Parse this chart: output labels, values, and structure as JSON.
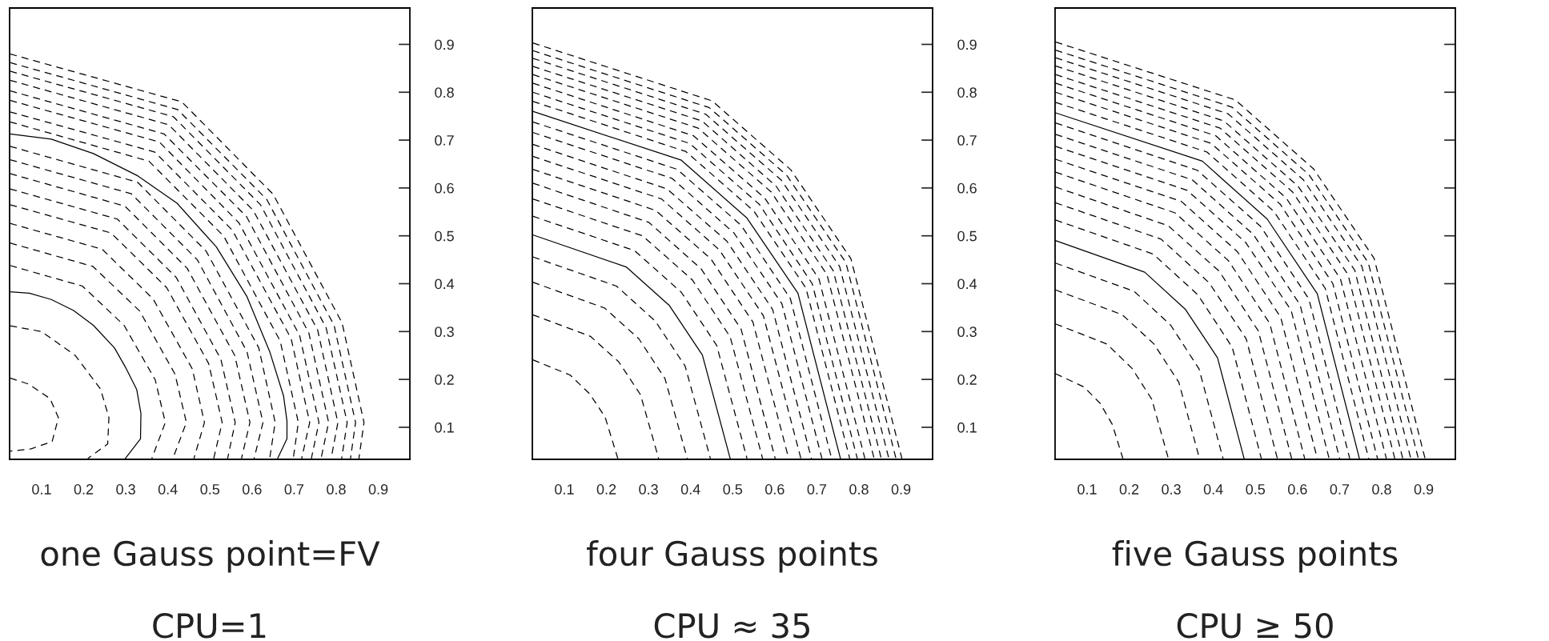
{
  "chart_data": [
    {
      "type": "line",
      "xlabel": "one Gauss point=FV",
      "annotations": [
        "CPU=1"
      ],
      "xlim": [
        0.024,
        0.975
      ],
      "ylim": [
        0.033,
        0.976
      ],
      "xticks": [
        0.1,
        0.2,
        0.3,
        0.4,
        0.5,
        0.6,
        0.7,
        0.8,
        0.9
      ],
      "yticks": [
        0.1,
        0.2,
        0.3,
        0.4,
        0.5,
        0.6,
        0.7,
        0.8,
        0.9
      ],
      "series": [
        {
          "x": [
            0.025,
            0.07,
            0.12,
            0.14,
            0.125,
            0.075,
            0.025
          ],
          "values": [
            0.203,
            0.19,
            0.16,
            0.12,
            0.07,
            0.055,
            0.05
          ],
          "color": "#000000",
          "line_style": "dashed"
        },
        {
          "x": [
            0.025,
            0.1,
            0.18,
            0.24,
            0.26,
            0.257,
            0.21
          ],
          "values": [
            0.312,
            0.3,
            0.25,
            0.18,
            0.12,
            0.065,
            0.035
          ],
          "color": "#000000",
          "line_style": "dashed"
        },
        {
          "x": [
            0.025,
            0.071,
            0.123,
            0.176,
            0.223,
            0.273,
            0.299,
            0.326,
            0.336,
            0.335,
            0.299
          ],
          "values": [
            0.383,
            0.38,
            0.367,
            0.344,
            0.313,
            0.266,
            0.226,
            0.179,
            0.129,
            0.076,
            0.035
          ],
          "color": "#000000",
          "line_style": "solid"
        },
        {
          "x": [
            0.025,
            0.197,
            0.296,
            0.37,
            0.394,
            0.362
          ],
          "values": [
            0.438,
            0.395,
            0.313,
            0.199,
            0.11,
            0.035
          ],
          "color": "#000000",
          "line_style": "dashed"
        },
        {
          "x": [
            0.025,
            0.222,
            0.333,
            0.417,
            0.444,
            0.412
          ],
          "values": [
            0.485,
            0.436,
            0.343,
            0.211,
            0.11,
            0.035
          ],
          "color": "#000000",
          "line_style": "dashed"
        },
        {
          "x": [
            0.025,
            0.244,
            0.365,
            0.458,
            0.487,
            0.462
          ],
          "values": [
            0.526,
            0.472,
            0.368,
            0.222,
            0.11,
            0.035
          ],
          "color": "#000000",
          "line_style": "dashed"
        },
        {
          "x": [
            0.025,
            0.265,
            0.397,
            0.497,
            0.529,
            0.509
          ],
          "values": [
            0.565,
            0.506,
            0.392,
            0.233,
            0.11,
            0.035
          ],
          "color": "#000000",
          "line_style": "dashed"
        },
        {
          "x": [
            0.025,
            0.28,
            0.42,
            0.526,
            0.56,
            0.542
          ],
          "values": [
            0.598,
            0.535,
            0.413,
            0.242,
            0.11,
            0.035
          ],
          "color": "#000000",
          "line_style": "dashed"
        },
        {
          "x": [
            0.025,
            0.298,
            0.446,
            0.559,
            0.595,
            0.575
          ],
          "values": [
            0.63,
            0.562,
            0.432,
            0.25,
            0.11,
            0.035
          ],
          "color": "#000000",
          "line_style": "dashed"
        },
        {
          "x": [
            0.025,
            0.313,
            0.47,
            0.588,
            0.626,
            0.605
          ],
          "values": [
            0.659,
            0.588,
            0.45,
            0.258,
            0.11,
            0.035
          ],
          "color": "#000000",
          "line_style": "dashed"
        },
        {
          "x": [
            0.025,
            0.328,
            0.491,
            0.616,
            0.655,
            0.642
          ],
          "values": [
            0.687,
            0.612,
            0.468,
            0.266,
            0.11,
            0.035
          ],
          "color": "#000000",
          "line_style": "dashed"
        },
        {
          "x": [
            0.025,
            0.123,
            0.223,
            0.329,
            0.422,
            0.515,
            0.588,
            0.642,
            0.675,
            0.683,
            0.683,
            0.661
          ],
          "values": [
            0.713,
            0.702,
            0.672,
            0.625,
            0.568,
            0.477,
            0.373,
            0.258,
            0.165,
            0.113,
            0.076,
            0.035
          ],
          "color": "#000000",
          "line_style": "solid"
        },
        {
          "x": [
            0.025,
            0.355,
            0.533,
            0.667,
            0.71,
            0.698
          ],
          "values": [
            0.738,
            0.656,
            0.499,
            0.28,
            0.11,
            0.035
          ],
          "color": "#000000",
          "line_style": "dashed"
        },
        {
          "x": [
            0.025,
            0.369,
            0.553,
            0.693,
            0.737,
            0.718
          ],
          "values": [
            0.759,
            0.675,
            0.512,
            0.285,
            0.11,
            0.035
          ],
          "color": "#000000",
          "line_style": "dashed"
        },
        {
          "x": [
            0.025,
            0.38,
            0.569,
            0.713,
            0.759,
            0.741
          ],
          "values": [
            0.783,
            0.696,
            0.527,
            0.292,
            0.11,
            0.035
          ],
          "color": "#000000",
          "line_style": "dashed"
        },
        {
          "x": [
            0.025,
            0.391,
            0.587,
            0.735,
            0.782,
            0.764
          ],
          "values": [
            0.803,
            0.713,
            0.54,
            0.297,
            0.11,
            0.035
          ],
          "color": "#000000",
          "line_style": "dashed"
        },
        {
          "x": [
            0.025,
            0.402,
            0.603,
            0.756,
            0.804,
            0.788
          ],
          "values": [
            0.825,
            0.732,
            0.553,
            0.303,
            0.11,
            0.035
          ],
          "color": "#000000",
          "line_style": "dashed"
        },
        {
          "x": [
            0.025,
            0.413,
            0.62,
            0.776,
            0.826,
            0.813
          ],
          "values": [
            0.844,
            0.749,
            0.565,
            0.308,
            0.11,
            0.035
          ],
          "color": "#000000",
          "line_style": "dashed"
        },
        {
          "x": [
            0.025,
            0.423,
            0.635,
            0.795,
            0.846,
            0.834
          ],
          "values": [
            0.862,
            0.764,
            0.576,
            0.313,
            0.11,
            0.035
          ],
          "color": "#000000",
          "line_style": "dashed"
        },
        {
          "x": [
            0.025,
            0.433,
            0.65,
            0.814,
            0.866,
            0.854
          ],
          "values": [
            0.88,
            0.78,
            0.587,
            0.318,
            0.11,
            0.035
          ],
          "color": "#000000",
          "line_style": "dashed"
        }
      ]
    },
    {
      "type": "line",
      "xlabel": "four Gauss points",
      "annotations": [
        "CPU ≈ 35"
      ],
      "xlim": [
        0.024,
        0.975
      ],
      "ylim": [
        0.033,
        0.976
      ],
      "xticks": [
        0.1,
        0.2,
        0.3,
        0.4,
        0.5,
        0.6,
        0.7,
        0.8,
        0.9
      ],
      "yticks": [
        0.1,
        0.2,
        0.3,
        0.4,
        0.5,
        0.6,
        0.7,
        0.8,
        0.9
      ],
      "series": [
        {
          "x": [
            0.025,
            0.114,
            0.16,
            0.197,
            0.227
          ],
          "values": [
            0.241,
            0.209,
            0.17,
            0.121,
            0.035
          ],
          "color": "#000000",
          "line_style": "dashed"
        },
        {
          "x": [
            0.025,
            0.162,
            0.229,
            0.281,
            0.324
          ],
          "values": [
            0.335,
            0.29,
            0.237,
            0.168,
            0.035
          ],
          "color": "#000000",
          "line_style": "dashed"
        },
        {
          "x": [
            0.025,
            0.196,
            0.277,
            0.339,
            0.392
          ],
          "values": [
            0.403,
            0.349,
            0.285,
            0.202,
            0.035
          ],
          "color": "#000000",
          "line_style": "dashed"
        },
        {
          "x": [
            0.025,
            0.224,
            0.316,
            0.387,
            0.447
          ],
          "values": [
            0.456,
            0.395,
            0.322,
            0.228,
            0.035
          ],
          "color": "#000000",
          "line_style": "dashed"
        },
        {
          "x": [
            0.025,
            0.247,
            0.349,
            0.428,
            0.494
          ],
          "values": [
            0.502,
            0.435,
            0.355,
            0.251,
            0.035
          ],
          "color": "#000000",
          "line_style": "solid"
        },
        {
          "x": [
            0.025,
            0.267,
            0.378,
            0.462,
            0.534
          ],
          "values": [
            0.541,
            0.469,
            0.382,
            0.271,
            0.035
          ],
          "color": "#000000",
          "line_style": "dashed"
        },
        {
          "x": [
            0.025,
            0.286,
            0.404,
            0.494,
            0.571
          ],
          "values": [
            0.577,
            0.5,
            0.408,
            0.289,
            0.035
          ],
          "color": "#000000",
          "line_style": "dashed"
        },
        {
          "x": [
            0.025,
            0.301,
            0.425,
            0.52,
            0.601
          ],
          "values": [
            0.61,
            0.528,
            0.431,
            0.305,
            0.035
          ],
          "color": "#000000",
          "line_style": "dashed"
        },
        {
          "x": [
            0.025,
            0.317,
            0.448,
            0.548,
            0.633
          ],
          "values": [
            0.639,
            0.553,
            0.452,
            0.32,
            0.035
          ],
          "color": "#000000",
          "line_style": "dashed"
        },
        {
          "x": [
            0.025,
            0.331,
            0.468,
            0.573,
            0.662
          ],
          "values": [
            0.666,
            0.577,
            0.471,
            0.333,
            0.035
          ],
          "color": "#000000",
          "line_style": "dashed"
        },
        {
          "x": [
            0.025,
            0.344,
            0.486,
            0.595,
            0.687
          ],
          "values": [
            0.691,
            0.598,
            0.489,
            0.346,
            0.035
          ],
          "color": "#000000",
          "line_style": "dashed"
        },
        {
          "x": [
            0.025,
            0.356,
            0.503,
            0.617,
            0.712
          ],
          "values": [
            0.716,
            0.62,
            0.506,
            0.358,
            0.035
          ],
          "color": "#000000",
          "line_style": "dashed"
        },
        {
          "x": [
            0.025,
            0.368,
            0.52,
            0.637,
            0.735
          ],
          "values": [
            0.738,
            0.639,
            0.522,
            0.369,
            0.035
          ],
          "color": "#000000",
          "line_style": "dashed"
        },
        {
          "x": [
            0.025,
            0.378,
            0.534,
            0.655,
            0.756
          ],
          "values": [
            0.76,
            0.658,
            0.537,
            0.38,
            0.035
          ],
          "color": "#000000",
          "line_style": "solid"
        },
        {
          "x": [
            0.025,
            0.389,
            0.55,
            0.674,
            0.778
          ],
          "values": [
            0.781,
            0.676,
            0.552,
            0.391,
            0.035
          ],
          "color": "#000000",
          "line_style": "dashed"
        },
        {
          "x": [
            0.025,
            0.398,
            0.563,
            0.689,
            0.796
          ],
          "values": [
            0.8,
            0.693,
            0.566,
            0.4,
            0.035
          ],
          "color": "#000000",
          "line_style": "dashed"
        },
        {
          "x": [
            0.025,
            0.407,
            0.576,
            0.705,
            0.814
          ],
          "values": [
            0.819,
            0.709,
            0.579,
            0.41,
            0.035
          ],
          "color": "#000000",
          "line_style": "dashed"
        },
        {
          "x": [
            0.025,
            0.418,
            0.591,
            0.724,
            0.836
          ],
          "values": [
            0.837,
            0.725,
            0.592,
            0.419,
            0.035
          ],
          "color": "#000000",
          "line_style": "dashed"
        },
        {
          "x": [
            0.025,
            0.427,
            0.603,
            0.739,
            0.853
          ],
          "values": [
            0.854,
            0.74,
            0.604,
            0.427,
            0.035
          ],
          "color": "#000000",
          "line_style": "dashed"
        },
        {
          "x": [
            0.025,
            0.436,
            0.616,
            0.754,
            0.871
          ],
          "values": [
            0.871,
            0.754,
            0.616,
            0.436,
            0.035
          ],
          "color": "#000000",
          "line_style": "dashed"
        },
        {
          "x": [
            0.025,
            0.444,
            0.628,
            0.769,
            0.888
          ],
          "values": [
            0.887,
            0.768,
            0.627,
            0.444,
            0.035
          ],
          "color": "#000000",
          "line_style": "dashed"
        },
        {
          "x": [
            0.025,
            0.451,
            0.638,
            0.781,
            0.902
          ],
          "values": [
            0.903,
            0.782,
            0.638,
            0.452,
            0.035
          ],
          "color": "#000000",
          "line_style": "dashed"
        }
      ]
    },
    {
      "type": "line",
      "xlabel": "five Gauss points",
      "annotations": [
        "CPU ≥ 50"
      ],
      "tick_labels": "x",
      "xlim": [
        0.024,
        0.975
      ],
      "ylim": [
        0.033,
        0.976
      ],
      "xticks": [
        0.1,
        0.2,
        0.3,
        0.4,
        0.5,
        0.6,
        0.7,
        0.8,
        0.9
      ],
      "yticks": [
        0.1,
        0.2,
        0.3,
        0.4,
        0.5,
        0.6,
        0.7,
        0.8,
        0.9
      ],
      "series": [
        {
          "x": [
            0.025,
            0.093,
            0.131,
            0.16,
            0.185
          ],
          "values": [
            0.212,
            0.184,
            0.15,
            0.106,
            0.035
          ],
          "color": "#000000",
          "line_style": "dashed"
        },
        {
          "x": [
            0.025,
            0.147,
            0.207,
            0.254,
            0.293
          ],
          "values": [
            0.316,
            0.274,
            0.223,
            0.158,
            0.035
          ],
          "color": "#000000",
          "line_style": "dashed"
        },
        {
          "x": [
            0.025,
            0.184,
            0.259,
            0.318,
            0.367
          ],
          "values": [
            0.387,
            0.335,
            0.274,
            0.194,
            0.035
          ],
          "color": "#000000",
          "line_style": "dashed"
        },
        {
          "x": [
            0.025,
            0.212,
            0.299,
            0.366,
            0.423
          ],
          "values": [
            0.443,
            0.384,
            0.313,
            0.222,
            0.035
          ],
          "color": "#000000",
          "line_style": "dashed"
        },
        {
          "x": [
            0.025,
            0.237,
            0.334,
            0.41,
            0.473
          ],
          "values": [
            0.49,
            0.424,
            0.346,
            0.245,
            0.035
          ],
          "color": "#000000",
          "line_style": "solid"
        },
        {
          "x": [
            0.025,
            0.257,
            0.363,
            0.445,
            0.514
          ],
          "values": [
            0.533,
            0.462,
            0.377,
            0.267,
            0.035
          ],
          "color": "#000000",
          "line_style": "dashed"
        },
        {
          "x": [
            0.025,
            0.276,
            0.39,
            0.478,
            0.552
          ],
          "values": [
            0.569,
            0.493,
            0.402,
            0.285,
            0.035
          ],
          "color": "#000000",
          "line_style": "dashed"
        },
        {
          "x": [
            0.025,
            0.293,
            0.414,
            0.507,
            0.586
          ],
          "values": [
            0.602,
            0.521,
            0.426,
            0.301,
            0.035
          ],
          "color": "#000000",
          "line_style": "dashed"
        },
        {
          "x": [
            0.025,
            0.309,
            0.436,
            0.534,
            0.617
          ],
          "values": [
            0.633,
            0.548,
            0.448,
            0.317,
            0.035
          ],
          "color": "#000000",
          "line_style": "dashed"
        },
        {
          "x": [
            0.025,
            0.324,
            0.457,
            0.56,
            0.647
          ],
          "values": [
            0.66,
            0.572,
            0.467,
            0.33,
            0.035
          ],
          "color": "#000000",
          "line_style": "dashed"
        },
        {
          "x": [
            0.025,
            0.338,
            0.477,
            0.585,
            0.675
          ],
          "values": [
            0.687,
            0.595,
            0.486,
            0.344,
            0.035
          ],
          "color": "#000000",
          "line_style": "dashed"
        },
        {
          "x": [
            0.025,
            0.35,
            0.495,
            0.606,
            0.7
          ],
          "values": [
            0.712,
            0.617,
            0.503,
            0.356,
            0.035
          ],
          "color": "#000000",
          "line_style": "dashed"
        },
        {
          "x": [
            0.025,
            0.362,
            0.512,
            0.627,
            0.724
          ],
          "values": [
            0.736,
            0.637,
            0.52,
            0.368,
            0.035
          ],
          "color": "#000000",
          "line_style": "dashed"
        },
        {
          "x": [
            0.025,
            0.374,
            0.528,
            0.647,
            0.747
          ],
          "values": [
            0.757,
            0.656,
            0.535,
            0.379,
            0.035
          ],
          "color": "#000000",
          "line_style": "solid"
        },
        {
          "x": [
            0.025,
            0.385,
            0.544,
            0.666,
            0.769
          ],
          "values": [
            0.779,
            0.675,
            0.551,
            0.39,
            0.035
          ],
          "color": "#000000",
          "line_style": "dashed"
        },
        {
          "x": [
            0.025,
            0.395,
            0.559,
            0.684,
            0.79
          ],
          "values": [
            0.8,
            0.693,
            0.566,
            0.4,
            0.035
          ],
          "color": "#000000",
          "line_style": "dashed"
        },
        {
          "x": [
            0.025,
            0.406,
            0.573,
            0.702,
            0.811
          ],
          "values": [
            0.819,
            0.709,
            0.579,
            0.41,
            0.035
          ],
          "color": "#000000",
          "line_style": "dashed"
        },
        {
          "x": [
            0.025,
            0.416,
            0.588,
            0.72,
            0.831
          ],
          "values": [
            0.837,
            0.725,
            0.592,
            0.419,
            0.035
          ],
          "color": "#000000",
          "line_style": "dashed"
        },
        {
          "x": [
            0.025,
            0.425,
            0.601,
            0.736,
            0.85
          ],
          "values": [
            0.855,
            0.74,
            0.604,
            0.428,
            0.035
          ],
          "color": "#000000",
          "line_style": "dashed"
        },
        {
          "x": [
            0.025,
            0.435,
            0.614,
            0.753,
            0.869
          ],
          "values": [
            0.872,
            0.755,
            0.617,
            0.436,
            0.035
          ],
          "color": "#000000",
          "line_style": "dashed"
        },
        {
          "x": [
            0.025,
            0.444,
            0.627,
            0.768,
            0.887
          ],
          "values": [
            0.888,
            0.769,
            0.628,
            0.444,
            0.035
          ],
          "color": "#000000",
          "line_style": "dashed"
        },
        {
          "x": [
            0.025,
            0.452,
            0.638,
            0.782,
            0.903
          ],
          "values": [
            0.905,
            0.784,
            0.64,
            0.453,
            0.035
          ],
          "color": "#000000",
          "line_style": "dashed"
        }
      ]
    }
  ]
}
